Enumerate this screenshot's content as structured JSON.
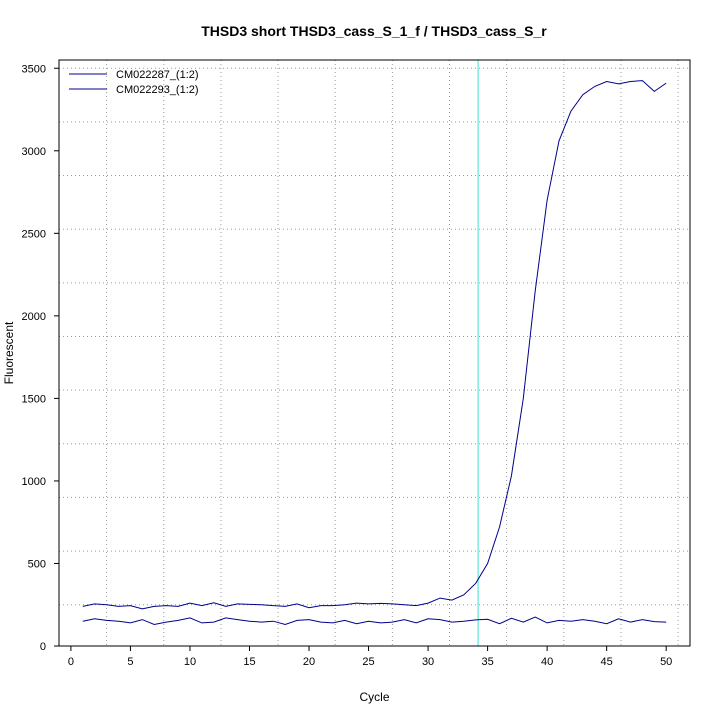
{
  "chart_data": {
    "type": "line",
    "title": "THSD3 short THSD3_cass_S_1_f / THSD3_cass_S_r",
    "xlabel": "Cycle",
    "ylabel": "Fluorescent",
    "xlim": [
      -1,
      52
    ],
    "ylim": [
      0,
      3550
    ],
    "x_ticks": [
      0,
      5,
      10,
      15,
      20,
      25,
      30,
      35,
      40,
      45,
      50
    ],
    "y_ticks": [
      0,
      500,
      1000,
      1500,
      2000,
      2500,
      3000,
      3500
    ],
    "grid": true,
    "legend_position": "top-left",
    "threshold_line": {
      "x": 34.2,
      "color": "#40e0d0"
    },
    "series": [
      {
        "name": "CM022287_(1:2)",
        "color": "#00008b",
        "x": [
          1,
          2,
          3,
          4,
          5,
          6,
          7,
          8,
          9,
          10,
          11,
          12,
          13,
          14,
          15,
          16,
          17,
          18,
          19,
          20,
          21,
          22,
          23,
          24,
          25,
          26,
          27,
          28,
          29,
          30,
          31,
          32,
          33,
          34,
          35,
          36,
          37,
          38,
          39,
          40,
          41,
          42,
          43,
          44,
          45,
          46,
          47,
          48,
          49,
          50
        ],
        "values": [
          240,
          255,
          250,
          240,
          245,
          225,
          240,
          245,
          240,
          260,
          245,
          262,
          240,
          255,
          252,
          250,
          245,
          240,
          255,
          232,
          245,
          245,
          250,
          260,
          255,
          258,
          255,
          250,
          245,
          260,
          290,
          278,
          310,
          380,
          500,
          720,
          1030,
          1500,
          2150,
          2700,
          3060,
          3240,
          3340,
          3390,
          3420,
          3405,
          3420,
          3425,
          3360,
          3410
        ]
      },
      {
        "name": "CM022293_(1:2)",
        "color": "#00008b",
        "x": [
          1,
          2,
          3,
          4,
          5,
          6,
          7,
          8,
          9,
          10,
          11,
          12,
          13,
          14,
          15,
          16,
          17,
          18,
          19,
          20,
          21,
          22,
          23,
          24,
          25,
          26,
          27,
          28,
          29,
          30,
          31,
          32,
          33,
          34,
          35,
          36,
          37,
          38,
          39,
          40,
          41,
          42,
          43,
          44,
          45,
          46,
          47,
          48,
          49,
          50
        ],
        "values": [
          150,
          165,
          155,
          150,
          140,
          160,
          130,
          145,
          155,
          170,
          140,
          145,
          170,
          160,
          150,
          145,
          150,
          130,
          155,
          160,
          145,
          140,
          155,
          135,
          150,
          140,
          145,
          160,
          140,
          165,
          160,
          145,
          150,
          158,
          162,
          135,
          168,
          145,
          175,
          140,
          155,
          150,
          160,
          150,
          135,
          165,
          145,
          160,
          148,
          145
        ]
      }
    ]
  }
}
